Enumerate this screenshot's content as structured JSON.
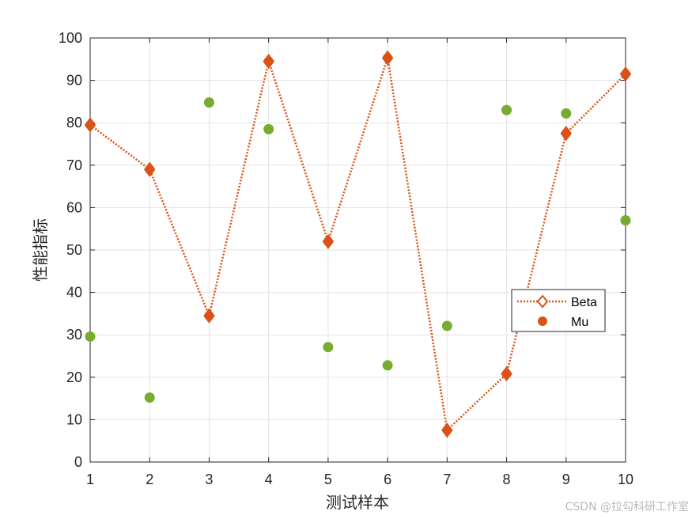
{
  "chart_data": {
    "type": "line",
    "xlabel": "测试样本",
    "ylabel": "性能指标",
    "x": [
      1,
      2,
      3,
      4,
      5,
      6,
      7,
      8,
      9,
      10
    ],
    "xlim": [
      1,
      10
    ],
    "ylim": [
      0,
      100
    ],
    "xticks": [
      1,
      2,
      3,
      4,
      5,
      6,
      7,
      8,
      9,
      10
    ],
    "yticks": [
      0,
      10,
      20,
      30,
      40,
      50,
      60,
      70,
      80,
      90,
      100
    ],
    "grid": true,
    "legend_position": "right",
    "series": [
      {
        "name": "Beta",
        "style": "dotted line with diamond markers",
        "color": "#D95319",
        "values": [
          79.5,
          69,
          34.5,
          94.5,
          52,
          95.3,
          7.5,
          20.8,
          77.5,
          91.5
        ]
      },
      {
        "name": "Mu",
        "style": "filled circle markers",
        "color": "#77AC30",
        "values": [
          29.6,
          15.2,
          84.8,
          78.5,
          27.1,
          22.8,
          32.1,
          83,
          82.2,
          57
        ]
      }
    ]
  },
  "watermark": "CSDN @拉勾科研工作室"
}
